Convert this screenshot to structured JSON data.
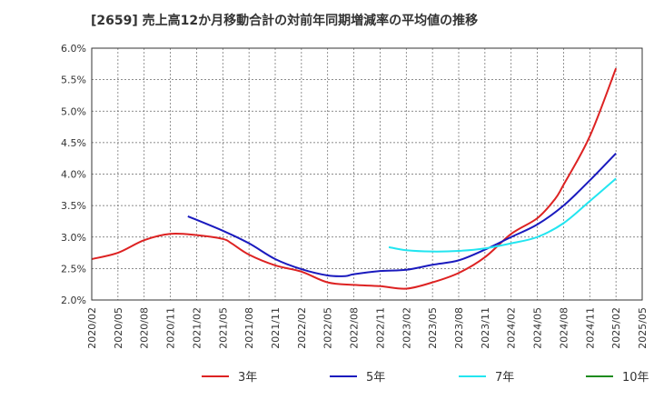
{
  "chart_data": {
    "type": "line",
    "title": "[2659]  売上高12か月移動合計の対前年同期増減率の平均値の推移",
    "xlabel": "",
    "ylabel": "",
    "x_categories": [
      "2020/02",
      "2020/05",
      "2020/08",
      "2020/11",
      "2021/02",
      "2021/05",
      "2021/08",
      "2021/11",
      "2022/02",
      "2022/05",
      "2022/08",
      "2022/11",
      "2023/02",
      "2023/05",
      "2023/08",
      "2023/11",
      "2024/02",
      "2024/05",
      "2024/08",
      "2024/11",
      "2025/02",
      "2025/05"
    ],
    "y_ticks": [
      "2.0%",
      "2.5%",
      "3.0%",
      "3.5%",
      "4.0%",
      "4.5%",
      "5.0%",
      "5.5%",
      "6.0%"
    ],
    "ylim": [
      2.0,
      6.0
    ],
    "grid": true,
    "legend_position": "bottom",
    "series": [
      {
        "name": "3年",
        "color": "#dd2222",
        "points": [
          [
            "2020/02",
            2.65
          ],
          [
            "2020/05",
            2.75
          ],
          [
            "2020/08",
            2.95
          ],
          [
            "2020/11",
            3.05
          ],
          [
            "2021/02",
            3.03
          ],
          [
            "2021/05",
            2.97
          ],
          [
            "2021/06",
            2.9
          ],
          [
            "2021/08",
            2.72
          ],
          [
            "2021/11",
            2.55
          ],
          [
            "2022/02",
            2.45
          ],
          [
            "2022/05",
            2.28
          ],
          [
            "2022/08",
            2.24
          ],
          [
            "2022/11",
            2.22
          ],
          [
            "2023/02",
            2.18
          ],
          [
            "2023/05",
            2.28
          ],
          [
            "2023/08",
            2.43
          ],
          [
            "2023/11",
            2.68
          ],
          [
            "2024/02",
            3.05
          ],
          [
            "2024/05",
            3.3
          ],
          [
            "2024/07",
            3.6
          ],
          [
            "2024/08",
            3.83
          ],
          [
            "2024/11",
            4.6
          ],
          [
            "2025/02",
            5.68
          ]
        ]
      },
      {
        "name": "5年",
        "color": "#1a1abe",
        "points": [
          [
            "2021/01",
            3.33
          ],
          [
            "2021/05",
            3.1
          ],
          [
            "2021/08",
            2.9
          ],
          [
            "2021/11",
            2.65
          ],
          [
            "2022/02",
            2.49
          ],
          [
            "2022/05",
            2.39
          ],
          [
            "2022/07",
            2.38
          ],
          [
            "2022/08",
            2.41
          ],
          [
            "2022/11",
            2.46
          ],
          [
            "2023/02",
            2.48
          ],
          [
            "2023/05",
            2.56
          ],
          [
            "2023/08",
            2.63
          ],
          [
            "2023/11",
            2.8
          ],
          [
            "2024/02",
            3.0
          ],
          [
            "2024/05",
            3.2
          ],
          [
            "2024/08",
            3.5
          ],
          [
            "2024/11",
            3.9
          ],
          [
            "2025/02",
            4.33
          ]
        ]
      },
      {
        "name": "7年",
        "color": "#22e5f0",
        "points": [
          [
            "2022/12",
            2.84
          ],
          [
            "2023/02",
            2.79
          ],
          [
            "2023/05",
            2.77
          ],
          [
            "2023/08",
            2.78
          ],
          [
            "2023/11",
            2.82
          ],
          [
            "2024/02",
            2.9
          ],
          [
            "2024/05",
            3.0
          ],
          [
            "2024/08",
            3.22
          ],
          [
            "2024/11",
            3.57
          ],
          [
            "2025/02",
            3.93
          ]
        ]
      },
      {
        "name": "10年",
        "color": "#1e8c1e",
        "points": []
      }
    ]
  }
}
